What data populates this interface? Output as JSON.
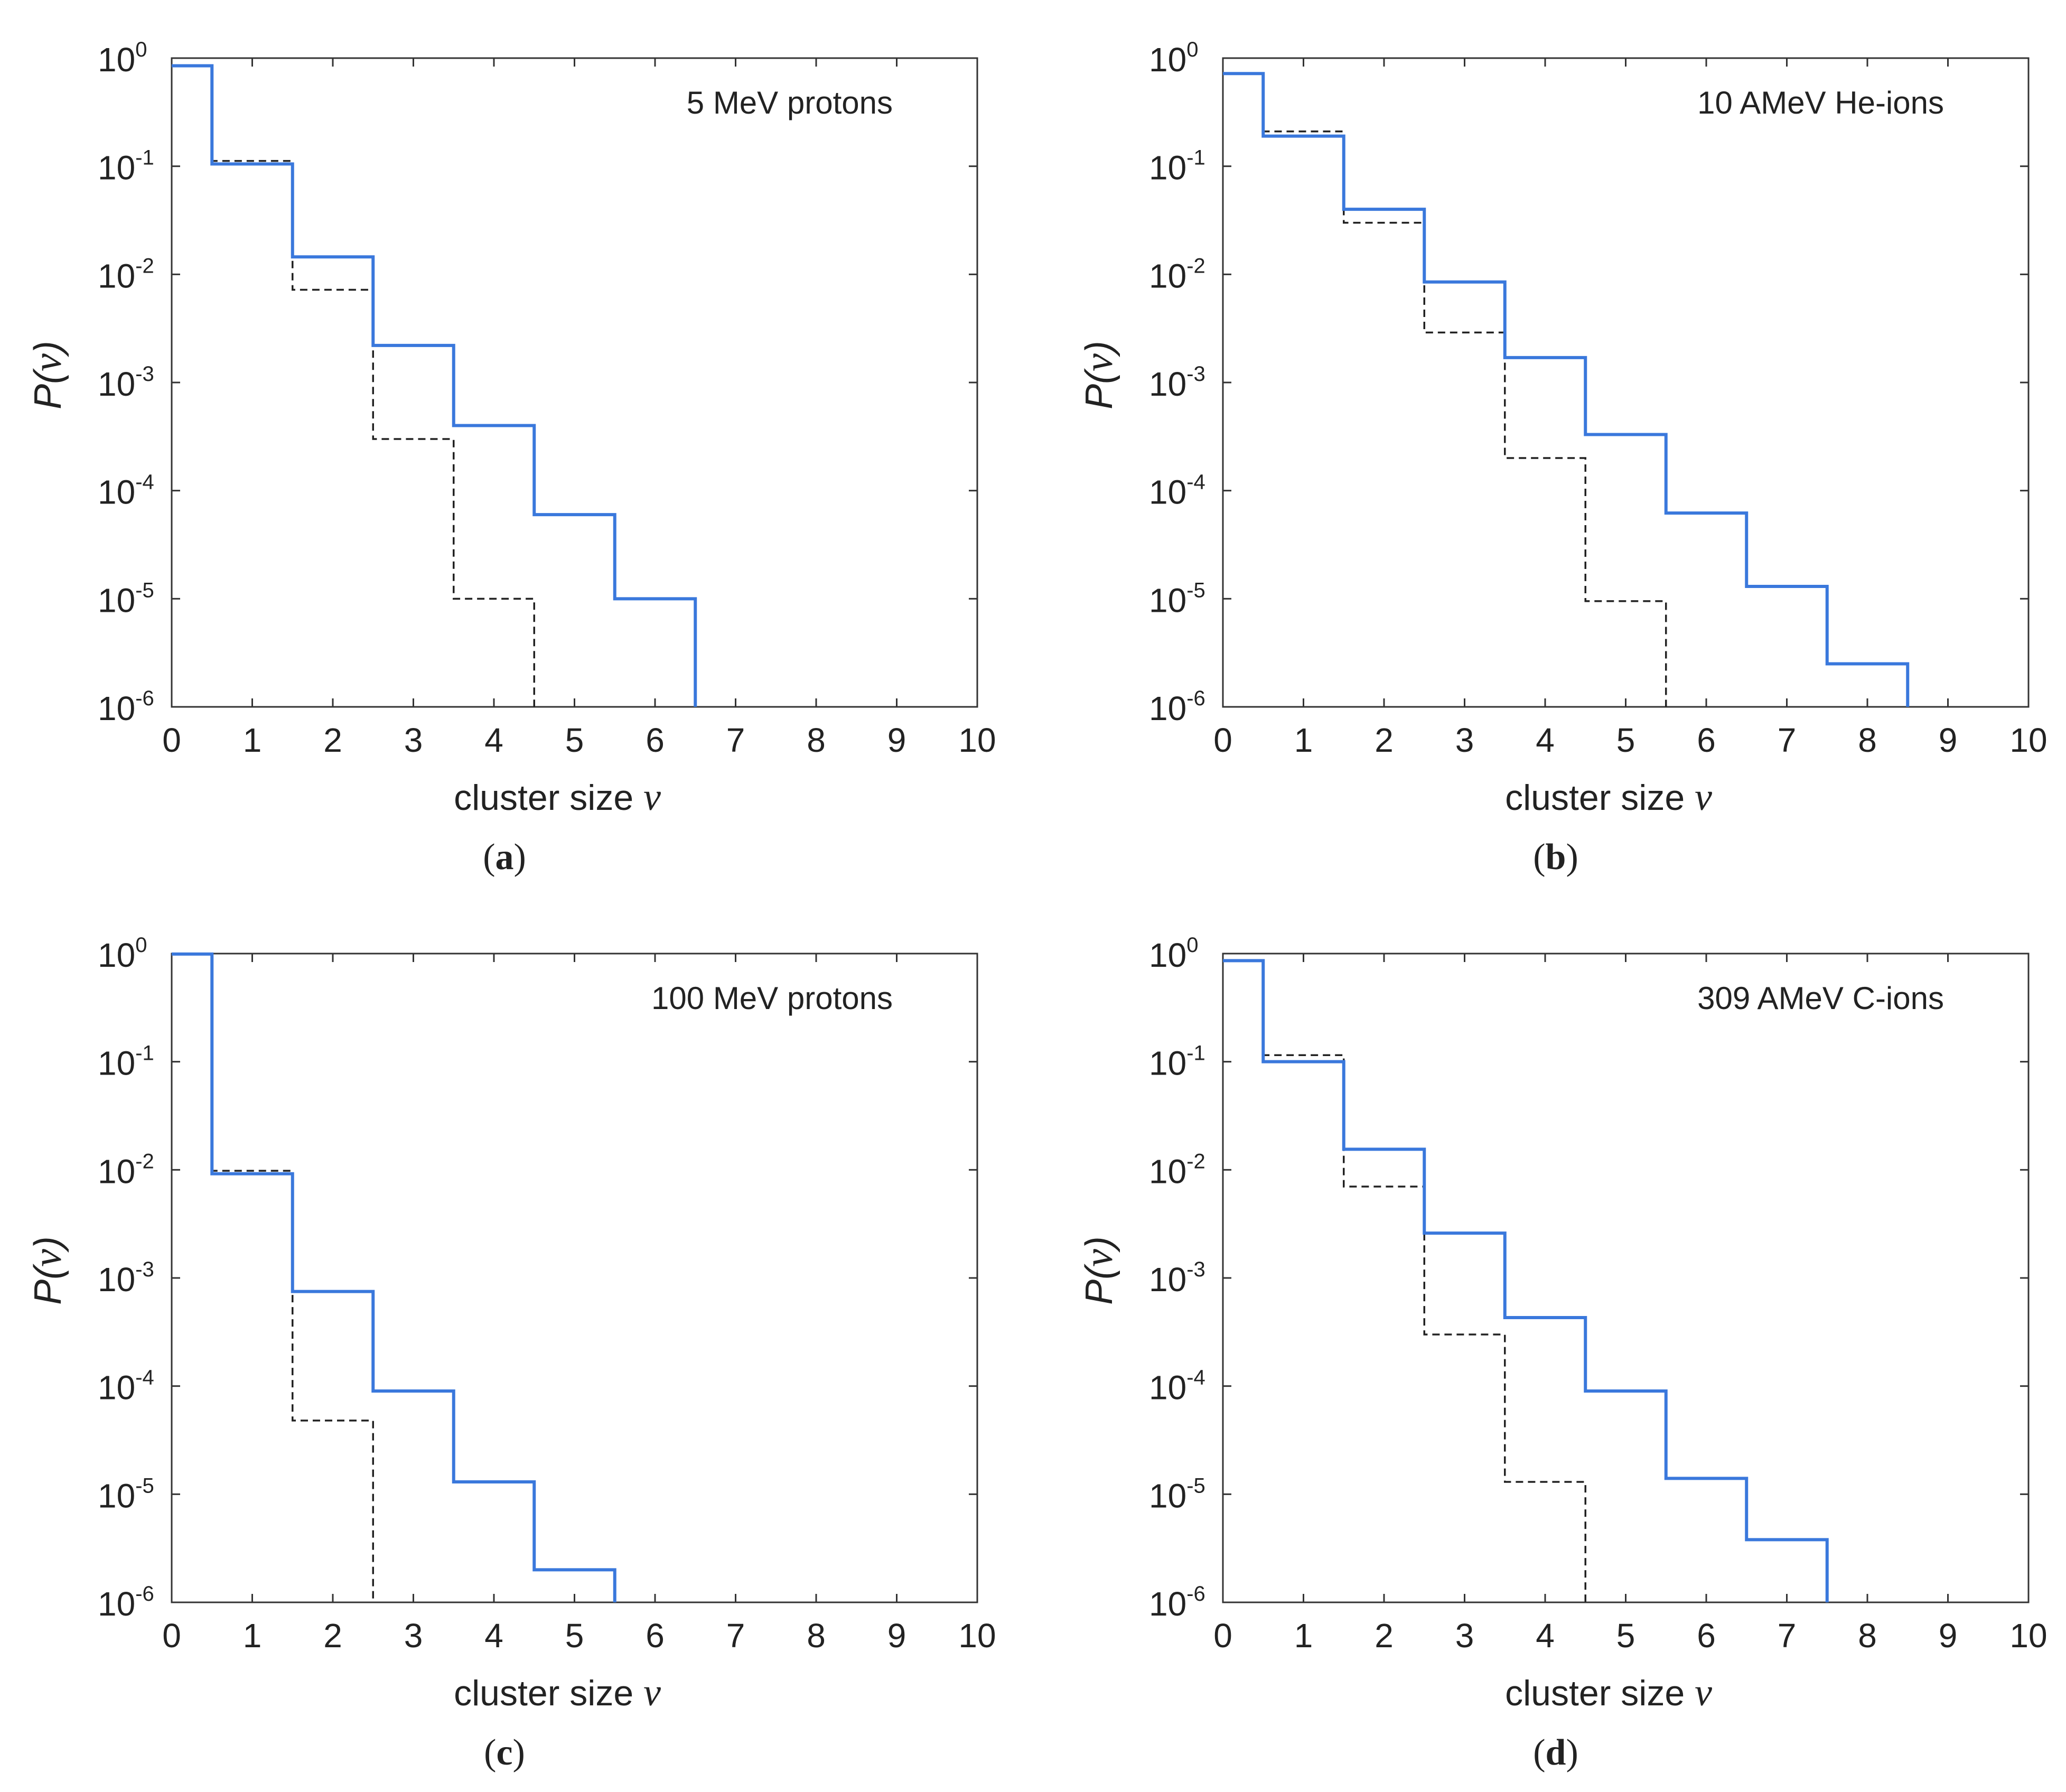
{
  "colors": {
    "series_blue": "#3a78dc",
    "series_dashed": "#222222",
    "axis": "#333333"
  },
  "chart_data": [
    {
      "type": "step",
      "panel_label": "a",
      "annotation": "5 MeV protons",
      "xlabel": "cluster size",
      "xlabel_symbol": "ν",
      "ylabel": "P",
      "ylabel_symbol": "ν",
      "xlim": [
        0,
        10
      ],
      "ylim": [
        1e-06,
        1
      ],
      "yscale": "log",
      "xticks": [
        "0",
        "1",
        "2",
        "3",
        "4",
        "5",
        "6",
        "7",
        "8",
        "9",
        "10"
      ],
      "yticks": [
        {
          "base": "10",
          "exp": "-6"
        },
        {
          "base": "10",
          "exp": "-5"
        },
        {
          "base": "10",
          "exp": "-4"
        },
        {
          "base": "10",
          "exp": "-3"
        },
        {
          "base": "10",
          "exp": "-2"
        },
        {
          "base": "10",
          "exp": "-1"
        },
        {
          "base": "10",
          "exp": "0"
        }
      ],
      "series": [
        {
          "name": "solid",
          "style": "solid",
          "color": "#3a78dc",
          "x": [
            0,
            1,
            2,
            3,
            4,
            5,
            6
          ],
          "values": [
            0.85,
            0.105,
            0.0145,
            0.0022,
            0.0004,
            6e-05,
            1e-05
          ]
        },
        {
          "name": "dashed",
          "style": "dashed",
          "color": "#222222",
          "x": [
            0,
            1,
            2,
            3,
            4
          ],
          "values": [
            0.85,
            0.112,
            0.0072,
            0.0003,
            1e-05
          ]
        }
      ]
    },
    {
      "type": "step",
      "panel_label": "b",
      "annotation": "10 AMeV He-ions",
      "xlabel": "cluster size",
      "xlabel_symbol": "ν",
      "ylabel": "P",
      "ylabel_symbol": "ν",
      "xlim": [
        0,
        10
      ],
      "ylim": [
        1e-06,
        1
      ],
      "yscale": "log",
      "xticks": [
        "0",
        "1",
        "2",
        "3",
        "4",
        "5",
        "6",
        "7",
        "8",
        "9",
        "10"
      ],
      "yticks": [
        {
          "base": "10",
          "exp": "-6"
        },
        {
          "base": "10",
          "exp": "-5"
        },
        {
          "base": "10",
          "exp": "-4"
        },
        {
          "base": "10",
          "exp": "-3"
        },
        {
          "base": "10",
          "exp": "-2"
        },
        {
          "base": "10",
          "exp": "-1"
        },
        {
          "base": "10",
          "exp": "0"
        }
      ],
      "series": [
        {
          "name": "solid",
          "style": "solid",
          "color": "#3a78dc",
          "x": [
            0,
            1,
            2,
            3,
            4,
            5,
            6,
            7,
            8
          ],
          "values": [
            0.72,
            0.19,
            0.04,
            0.0085,
            0.0017,
            0.00033,
            6.2e-05,
            1.3e-05,
            2.5e-06
          ]
        },
        {
          "name": "dashed",
          "style": "dashed",
          "color": "#222222",
          "x": [
            0,
            1,
            2,
            3,
            4,
            5
          ],
          "values": [
            0.72,
            0.21,
            0.03,
            0.0029,
            0.0002,
            9.5e-06
          ]
        }
      ]
    },
    {
      "type": "step",
      "panel_label": "c",
      "annotation": "100 MeV protons",
      "xlabel": "cluster size",
      "xlabel_symbol": "ν",
      "ylabel": "P",
      "ylabel_symbol": "ν",
      "xlim": [
        0,
        10
      ],
      "ylim": [
        1e-06,
        1
      ],
      "yscale": "log",
      "xticks": [
        "0",
        "1",
        "2",
        "3",
        "4",
        "5",
        "6",
        "7",
        "8",
        "9",
        "10"
      ],
      "yticks": [
        {
          "base": "10",
          "exp": "-6"
        },
        {
          "base": "10",
          "exp": "-5"
        },
        {
          "base": "10",
          "exp": "-4"
        },
        {
          "base": "10",
          "exp": "-3"
        },
        {
          "base": "10",
          "exp": "-2"
        },
        {
          "base": "10",
          "exp": "-1"
        },
        {
          "base": "10",
          "exp": "0"
        }
      ],
      "series": [
        {
          "name": "solid",
          "style": "solid",
          "color": "#3a78dc",
          "x": [
            0,
            1,
            2,
            3,
            4,
            5
          ],
          "values": [
            0.99,
            0.0092,
            0.00075,
            9e-05,
            1.3e-05,
            2e-06
          ]
        },
        {
          "name": "dashed",
          "style": "dashed",
          "color": "#222222",
          "x": [
            0,
            1,
            2
          ],
          "values": [
            0.99,
            0.0098,
            4.8e-05
          ]
        }
      ]
    },
    {
      "type": "step",
      "panel_label": "d",
      "annotation": "309 AMeV C-ions",
      "xlabel": "cluster size",
      "xlabel_symbol": "ν",
      "ylabel": "P",
      "ylabel_symbol": "ν",
      "xlim": [
        0,
        10
      ],
      "ylim": [
        1e-06,
        1
      ],
      "yscale": "log",
      "xticks": [
        "0",
        "1",
        "2",
        "3",
        "4",
        "5",
        "6",
        "7",
        "8",
        "9",
        "10"
      ],
      "yticks": [
        {
          "base": "10",
          "exp": "-6"
        },
        {
          "base": "10",
          "exp": "-5"
        },
        {
          "base": "10",
          "exp": "-4"
        },
        {
          "base": "10",
          "exp": "-3"
        },
        {
          "base": "10",
          "exp": "-2"
        },
        {
          "base": "10",
          "exp": "-1"
        },
        {
          "base": "10",
          "exp": "0"
        }
      ],
      "series": [
        {
          "name": "solid",
          "style": "solid",
          "color": "#3a78dc",
          "x": [
            0,
            1,
            2,
            3,
            4,
            5,
            6,
            7
          ],
          "values": [
            0.86,
            0.1,
            0.0155,
            0.0026,
            0.00043,
            9e-05,
            1.4e-05,
            3.8e-06
          ]
        },
        {
          "name": "dashed",
          "style": "dashed",
          "color": "#222222",
          "x": [
            0,
            1,
            2,
            3,
            4
          ],
          "values": [
            0.86,
            0.115,
            0.007,
            0.0003,
            1.3e-05
          ]
        }
      ]
    }
  ]
}
